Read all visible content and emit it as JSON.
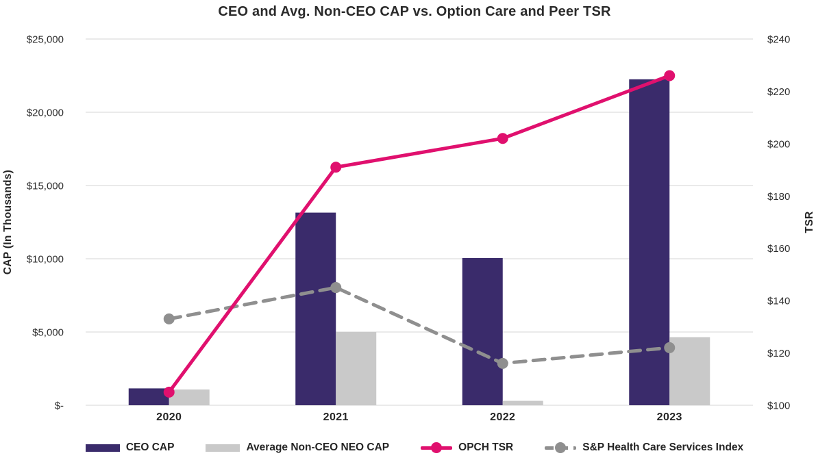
{
  "chart_data": {
    "type": "combo-bar-line",
    "title": "CEO and Avg. Non-CEO CAP vs. Option Care and Peer TSR",
    "categories": [
      "2020",
      "2021",
      "2022",
      "2023"
    ],
    "bar_series": [
      {
        "name": "CEO CAP",
        "color": "#3A2B6B",
        "values": [
          1150,
          13150,
          10050,
          22250
        ]
      },
      {
        "name": "Average Non-CEO NEO CAP",
        "color": "#C9C9C9",
        "values": [
          1075,
          5000,
          300,
          4650
        ]
      }
    ],
    "line_series": [
      {
        "name": "OPCH TSR",
        "color": "#E0106E",
        "dashed": false,
        "values": [
          105,
          191,
          202,
          226
        ]
      },
      {
        "name": "S&P Health Care Services Index",
        "color": "#8F8F8F",
        "dashed": true,
        "values": [
          133,
          145,
          116,
          122
        ]
      }
    ],
    "left_axis": {
      "title": "CAP (In Thousands)",
      "min": 0,
      "max": 25000,
      "tick_step": 5000,
      "tick_labels": [
        "$-",
        "$5,000",
        "$10,000",
        "$15,000",
        "$20,000",
        "$25,000"
      ]
    },
    "right_axis": {
      "title": "TSR",
      "min": 100,
      "max": 240,
      "tick_step": 20,
      "tick_labels": [
        "$100",
        "$120",
        "$140",
        "$160",
        "$180",
        "$200",
        "$220",
        "$240"
      ]
    },
    "grid_color": "#E3E3E3",
    "text_color": "#2B2B2B",
    "legend_position": "bottom",
    "grid": true
  }
}
